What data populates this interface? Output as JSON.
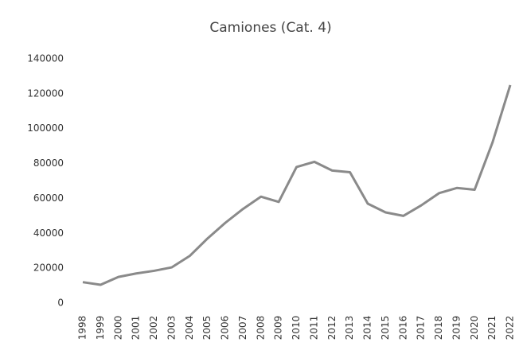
{
  "chart_data": {
    "type": "line",
    "title": "Camiones (Cat. 4)",
    "categories": [
      "1998",
      "1999",
      "2000",
      "2001",
      "2002",
      "2003",
      "2004",
      "2005",
      "2006",
      "2007",
      "2008",
      "2009",
      "2010",
      "2011",
      "2012",
      "2013",
      "2014",
      "2015",
      "2016",
      "2017",
      "2018",
      "2019",
      "2020",
      "2021",
      "2022"
    ],
    "values": [
      12000,
      10500,
      15000,
      17000,
      18500,
      20500,
      27000,
      37000,
      46000,
      54000,
      61000,
      58000,
      78000,
      81000,
      76000,
      75000,
      57000,
      52000,
      50000,
      56000,
      63000,
      66000,
      65000,
      92000,
      125000
    ],
    "color": "#8a8a8a",
    "ylim": [
      0,
      140000
    ],
    "yticks": [
      0,
      20000,
      40000,
      60000,
      80000,
      100000,
      120000,
      140000
    ],
    "grid": false
  }
}
